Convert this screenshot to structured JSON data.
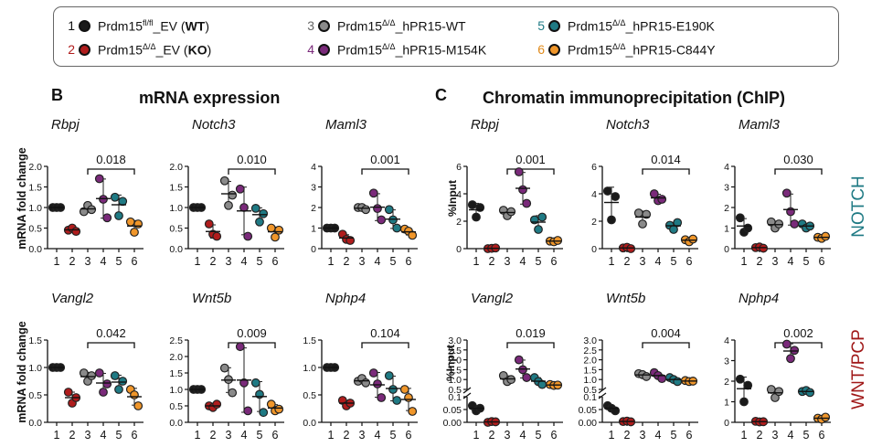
{
  "legend": {
    "items": [
      {
        "num": "1",
        "base": "Prdm15",
        "sup": "fl/fl",
        "rest": "_EV (",
        "bold": "WT",
        "tail": ")",
        "color": "#1a1a1a",
        "numcolor": "#111111"
      },
      {
        "num": "2",
        "base": "Prdm15",
        "sup": "Δ/Δ",
        "rest": "_EV (",
        "bold": "KO",
        "tail": ")",
        "color": "#b01c1c",
        "numcolor": "#b01c1c"
      },
      {
        "num": "3",
        "base": "Prdm15",
        "sup": "Δ/Δ",
        "rest": "_hPR15-WT",
        "bold": "",
        "tail": "",
        "color": "#8a8a8a",
        "numcolor": "#666666"
      },
      {
        "num": "4",
        "base": "Prdm15",
        "sup": "Δ/Δ",
        "rest": "_hPR15-M154K",
        "bold": "",
        "tail": "",
        "color": "#7a2a7a",
        "numcolor": "#7a2a7a"
      },
      {
        "num": "5",
        "base": "Prdm15",
        "sup": "Δ/Δ",
        "rest": "_hPR15-E190K",
        "bold": "",
        "tail": "",
        "color": "#1f7a84",
        "numcolor": "#1f7a84"
      },
      {
        "num": "6",
        "base": "Prdm15",
        "sup": "Δ/Δ",
        "rest": "_hPR15-C844Y",
        "bold": "",
        "tail": "",
        "color": "#f0962a",
        "numcolor": "#e08a1a"
      }
    ]
  },
  "headers": {
    "panel_b": "B",
    "title_b": "mRNA expression",
    "panel_c": "C",
    "title_c": "Chromatin immunoprecipitation (ChIP)",
    "ylabel_mrna": "mRNA fold change",
    "ylabel_chip": "%Input",
    "side_top": "NOTCH",
    "side_bottom": "WNT/PCP",
    "side_top_color": "#1f7a84",
    "side_bottom_color": "#a01818"
  },
  "chart_data": [
    {
      "type": "scatter",
      "gene": "Rbpj",
      "section": "mRNA expression",
      "ylabel": "mRNA fold change",
      "ylim": [
        0,
        2.0
      ],
      "yticks": [
        "0.0",
        "0.5",
        "1.0",
        "1.5",
        "2.0"
      ],
      "categories": [
        "1",
        "2",
        "3",
        "4",
        "5",
        "6"
      ],
      "pvalue": "0.018",
      "points": [
        [
          1.0,
          1.0,
          1.0
        ],
        [
          0.45,
          0.5,
          0.42
        ],
        [
          0.9,
          1.05,
          0.95
        ],
        [
          1.7,
          1.2,
          0.75
        ],
        [
          1.25,
          0.8,
          1.15
        ],
        [
          0.65,
          0.4,
          0.6
        ]
      ]
    },
    {
      "type": "scatter",
      "gene": "Notch3",
      "section": "mRNA expression",
      "ylabel": "mRNA fold change",
      "ylim": [
        0,
        2.0
      ],
      "yticks": [
        "0.0",
        "0.5",
        "1.0",
        "1.5",
        "2.0"
      ],
      "categories": [
        "1",
        "2",
        "3",
        "4",
        "5",
        "6"
      ],
      "pvalue": "0.010",
      "points": [
        [
          1.0,
          1.0,
          1.0
        ],
        [
          0.6,
          0.35,
          0.3
        ],
        [
          1.65,
          1.05,
          1.3
        ],
        [
          1.45,
          1.0,
          0.3
        ],
        [
          0.98,
          0.65,
          0.85
        ],
        [
          0.5,
          0.28,
          0.45
        ]
      ]
    },
    {
      "type": "scatter",
      "gene": "Maml3",
      "section": "mRNA expression",
      "ylabel": "mRNA fold change",
      "ylim": [
        0,
        4
      ],
      "yticks": [
        "0",
        "1",
        "2",
        "3",
        "4"
      ],
      "categories": [
        "1",
        "2",
        "3",
        "4",
        "5",
        "6"
      ],
      "pvalue": "0.001",
      "points": [
        [
          1.0,
          1.0,
          1.0
        ],
        [
          0.7,
          0.45,
          0.4
        ],
        [
          2.0,
          2.0,
          1.9
        ],
        [
          2.7,
          1.95,
          1.4
        ],
        [
          1.9,
          1.4,
          1.0
        ],
        [
          0.95,
          0.85,
          0.65
        ]
      ]
    },
    {
      "type": "scatter",
      "gene": "Rbpj",
      "section": "Chromatin immunoprecipitation (ChIP)",
      "ylabel": "%Input",
      "ylim": [
        0,
        6
      ],
      "yticks": [
        "0",
        "2",
        "4",
        "6"
      ],
      "categories": [
        "1",
        "2",
        "3",
        "4",
        "5",
        "6"
      ],
      "pvalue": "0.001",
      "points": [
        [
          3.2,
          2.3,
          3.0
        ],
        [
          0.0,
          0.02,
          0.05
        ],
        [
          2.8,
          2.4,
          2.7
        ],
        [
          5.6,
          4.3,
          3.3
        ],
        [
          2.1,
          1.4,
          2.3
        ],
        [
          0.55,
          0.5,
          0.6
        ]
      ]
    },
    {
      "type": "scatter",
      "gene": "Notch3",
      "section": "Chromatin immunoprecipitation (ChIP)",
      "ylabel": "%Input",
      "ylim": [
        0,
        6
      ],
      "yticks": [
        "0",
        "2",
        "4",
        "6"
      ],
      "categories": [
        "1",
        "2",
        "3",
        "4",
        "5",
        "6"
      ],
      "pvalue": "0.014",
      "points": [
        [
          4.2,
          2.1,
          3.8
        ],
        [
          0.05,
          0.1,
          0.0
        ],
        [
          2.6,
          1.8,
          2.5
        ],
        [
          4.0,
          3.5,
          3.6
        ],
        [
          1.7,
          1.4,
          1.9
        ],
        [
          0.65,
          0.5,
          0.7
        ]
      ]
    },
    {
      "type": "scatter",
      "gene": "Maml3",
      "section": "Chromatin immunoprecipitation (ChIP)",
      "ylabel": "%Input",
      "ylim": [
        0,
        4
      ],
      "yticks": [
        "0",
        "1",
        "2",
        "3",
        "4"
      ],
      "categories": [
        "1",
        "2",
        "3",
        "4",
        "5",
        "6"
      ],
      "pvalue": "0.030",
      "points": [
        [
          1.5,
          0.8,
          1.0
        ],
        [
          0.05,
          0.08,
          0.02
        ],
        [
          1.3,
          1.0,
          1.2
        ],
        [
          2.7,
          1.8,
          1.2
        ],
        [
          1.2,
          1.0,
          1.1
        ],
        [
          0.55,
          0.5,
          0.6
        ]
      ]
    },
    {
      "type": "scatter",
      "gene": "Vangl2",
      "section": "mRNA expression",
      "ylabel": "mRNA fold change",
      "ylim": [
        0,
        1.5
      ],
      "yticks": [
        "0.0",
        "0.5",
        "1.0",
        "1.5"
      ],
      "categories": [
        "1",
        "2",
        "3",
        "4",
        "5",
        "6"
      ],
      "pvalue": "0.042",
      "points": [
        [
          1.0,
          1.0,
          1.0
        ],
        [
          0.55,
          0.35,
          0.45
        ],
        [
          0.9,
          0.75,
          0.85
        ],
        [
          0.9,
          0.55,
          0.7
        ],
        [
          0.85,
          0.6,
          0.75
        ],
        [
          0.6,
          0.5,
          0.3
        ]
      ]
    },
    {
      "type": "scatter",
      "gene": "Wnt5b",
      "section": "mRNA expression",
      "ylabel": "mRNA fold change",
      "ylim": [
        0,
        2.5
      ],
      "yticks": [
        "0.0",
        "0.5",
        "1.0",
        "1.5",
        "2.0",
        "2.5"
      ],
      "categories": [
        "1",
        "2",
        "3",
        "4",
        "5",
        "6"
      ],
      "pvalue": "0.009",
      "points": [
        [
          1.0,
          1.0,
          1.0
        ],
        [
          0.5,
          0.45,
          0.55
        ],
        [
          1.65,
          1.3,
          0.9
        ],
        [
          2.3,
          1.2,
          0.35
        ],
        [
          1.2,
          0.85,
          0.3
        ],
        [
          0.55,
          0.35,
          0.4
        ]
      ]
    },
    {
      "type": "scatter",
      "gene": "Nphp4",
      "section": "mRNA expression",
      "ylabel": "mRNA fold change",
      "ylim": [
        0,
        1.5
      ],
      "yticks": [
        "0.0",
        "0.5",
        "1.0",
        "1.5"
      ],
      "categories": [
        "1",
        "2",
        "3",
        "4",
        "5",
        "6"
      ],
      "pvalue": "0.104",
      "points": [
        [
          1.0,
          1.0,
          1.0
        ],
        [
          0.4,
          0.3,
          0.35
        ],
        [
          0.75,
          0.8,
          0.72
        ],
        [
          0.9,
          0.7,
          0.45
        ],
        [
          0.85,
          0.6,
          0.4
        ],
        [
          0.6,
          0.45,
          0.2
        ]
      ]
    },
    {
      "type": "scatter",
      "gene": "Vangl2",
      "section": "Chromatin immunoprecipitation (ChIP)",
      "ylabel": "%Input",
      "yaxis": "broken",
      "ylim_lower": [
        0,
        0.1
      ],
      "ylim_upper": [
        0.5,
        3
      ],
      "yticks": [
        "0.00",
        "0.05",
        "0.1",
        "0.5",
        "1.0",
        "1.5",
        "2.0",
        "2.5",
        "3.0"
      ],
      "categories": [
        "1",
        "2",
        "3",
        "4",
        "5",
        "6"
      ],
      "pvalue": "0.019",
      "points": [
        [
          0.065,
          0.045,
          0.055
        ],
        [
          0.0,
          0.003,
          0.002
        ],
        [
          1.2,
          0.9,
          1.0
        ],
        [
          2.0,
          1.5,
          1.1
        ],
        [
          1.1,
          0.9,
          0.75
        ],
        [
          0.75,
          0.7,
          0.72
        ]
      ]
    },
    {
      "type": "scatter",
      "gene": "Wnt5b",
      "section": "Chromatin immunoprecipitation (ChIP)",
      "ylabel": "%Input",
      "yaxis": "broken",
      "ylim_lower": [
        0,
        0.1
      ],
      "ylim_upper": [
        0.5,
        3
      ],
      "yticks": [
        "0.00",
        "0.05",
        "0.1",
        "0.5",
        "1.0",
        "1.5",
        "2.0",
        "2.5",
        "3.0"
      ],
      "categories": [
        "1",
        "2",
        "3",
        "4",
        "5",
        "6"
      ],
      "pvalue": "0.004",
      "points": [
        [
          0.065,
          0.055,
          0.045
        ],
        [
          0.003,
          0.005,
          0.002
        ],
        [
          1.3,
          1.25,
          1.15
        ],
        [
          1.35,
          1.2,
          1.05
        ],
        [
          1.1,
          1.0,
          0.9
        ],
        [
          0.95,
          0.9,
          0.92
        ]
      ]
    },
    {
      "type": "scatter",
      "gene": "Nphp4",
      "section": "Chromatin immunoprecipitation (ChIP)",
      "ylabel": "%Input",
      "ylim": [
        0,
        4
      ],
      "yticks": [
        "0",
        "1",
        "2",
        "3",
        "4"
      ],
      "categories": [
        "1",
        "2",
        "3",
        "4",
        "5",
        "6"
      ],
      "pvalue": "0.002",
      "points": [
        [
          2.1,
          1.0,
          1.8
        ],
        [
          0.05,
          0.02,
          0.03
        ],
        [
          1.6,
          1.2,
          1.5
        ],
        [
          3.8,
          3.1,
          3.5
        ],
        [
          1.5,
          1.55,
          1.45
        ],
        [
          0.2,
          0.15,
          0.25
        ]
      ]
    }
  ]
}
